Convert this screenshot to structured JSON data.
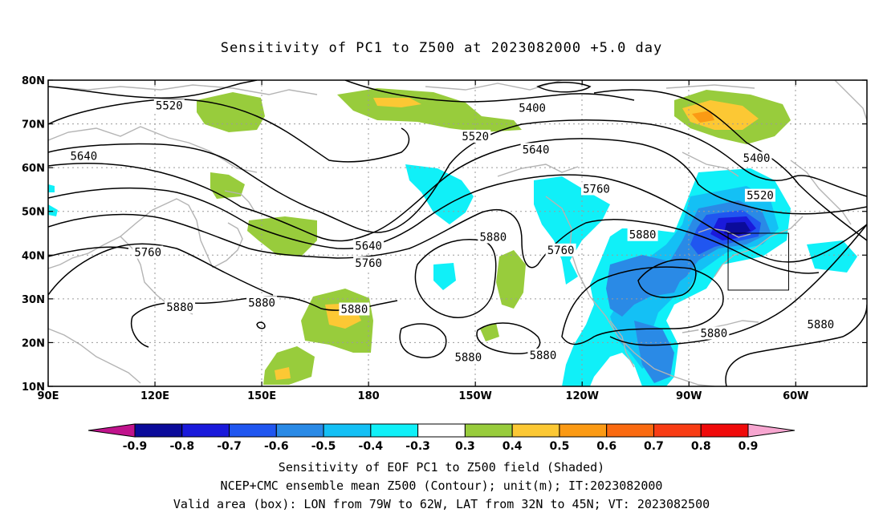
{
  "title": "Sensitivity of PC1 to Z500 at 2023082000 +5.0 day",
  "map": {
    "lon_ticks": [
      "90E",
      "120E",
      "150E",
      "180",
      "150W",
      "120W",
      "90W",
      "60W"
    ],
    "lat_ticks": [
      "80N",
      "70N",
      "60N",
      "50N",
      "40N",
      "30N",
      "20N",
      "10N"
    ],
    "extent": {
      "lon_min": 90,
      "lon_max": 320,
      "lat_min": 10,
      "lat_max": 80
    },
    "grid": "dotted",
    "coastline_color": "#b4b4b4"
  },
  "contour_labels": [
    {
      "text": "5520",
      "lon": 124,
      "lat": 74
    },
    {
      "text": "5400",
      "lon": 226,
      "lat": 73.5
    },
    {
      "text": "5520",
      "lon": 210,
      "lat": 67
    },
    {
      "text": "5640",
      "lon": 100,
      "lat": 62.5
    },
    {
      "text": "5640",
      "lon": 227,
      "lat": 64
    },
    {
      "text": "5760",
      "lon": 244,
      "lat": 55
    },
    {
      "text": "5400",
      "lon": 289,
      "lat": 62
    },
    {
      "text": "5520",
      "lon": 290,
      "lat": 53.5
    },
    {
      "text": "5760",
      "lon": 118,
      "lat": 40.5
    },
    {
      "text": "5640",
      "lon": 180,
      "lat": 42
    },
    {
      "text": "5760",
      "lon": 180,
      "lat": 38
    },
    {
      "text": "5880",
      "lon": 215,
      "lat": 44
    },
    {
      "text": "5760",
      "lon": 234,
      "lat": 41
    },
    {
      "text": "5880",
      "lon": 257,
      "lat": 44.5
    },
    {
      "text": "5880",
      "lon": 127,
      "lat": 28
    },
    {
      "text": "5880",
      "lon": 150,
      "lat": 29
    },
    {
      "text": "5880",
      "lon": 176,
      "lat": 27.5
    },
    {
      "text": "5880",
      "lon": 208,
      "lat": 16.5
    },
    {
      "text": "5880",
      "lon": 229,
      "lat": 17
    },
    {
      "text": "5880",
      "lon": 277,
      "lat": 22
    },
    {
      "text": "5880",
      "lon": 307,
      "lat": 24
    }
  ],
  "valid_box": {
    "lon_min": 281,
    "lon_max": 298,
    "lat_min": 32,
    "lat_max": 45
  },
  "colorbar": {
    "labels": [
      "-0.9",
      "-0.8",
      "-0.7",
      "-0.6",
      "-0.5",
      "-0.4",
      "-0.3",
      "0.3",
      "0.4",
      "0.5",
      "0.6",
      "0.7",
      "0.8",
      "0.9"
    ],
    "colors": [
      "#0b0b9a",
      "#1a1adb",
      "#2056f0",
      "#2a8ae6",
      "#14c0f5",
      "#10f0f8",
      "#ffffff",
      "#98cc3c",
      "#fcc834",
      "#fb9a14",
      "#fa6a10",
      "#f83c14",
      "#f00a0a"
    ],
    "left_arrow_color": "#c0138c",
    "right_arrow_color": "#f7a6d0"
  },
  "captions": {
    "line1": "Sensitivity of EOF PC1 to Z500 field (Shaded)",
    "line2": "NCEP+CMC ensemble mean Z500 (Contour); unit(m); IT:2023082000",
    "line3": "Valid area (box): LON from 79W to 62W, LAT from 32N to 45N; VT: 2023082500"
  }
}
